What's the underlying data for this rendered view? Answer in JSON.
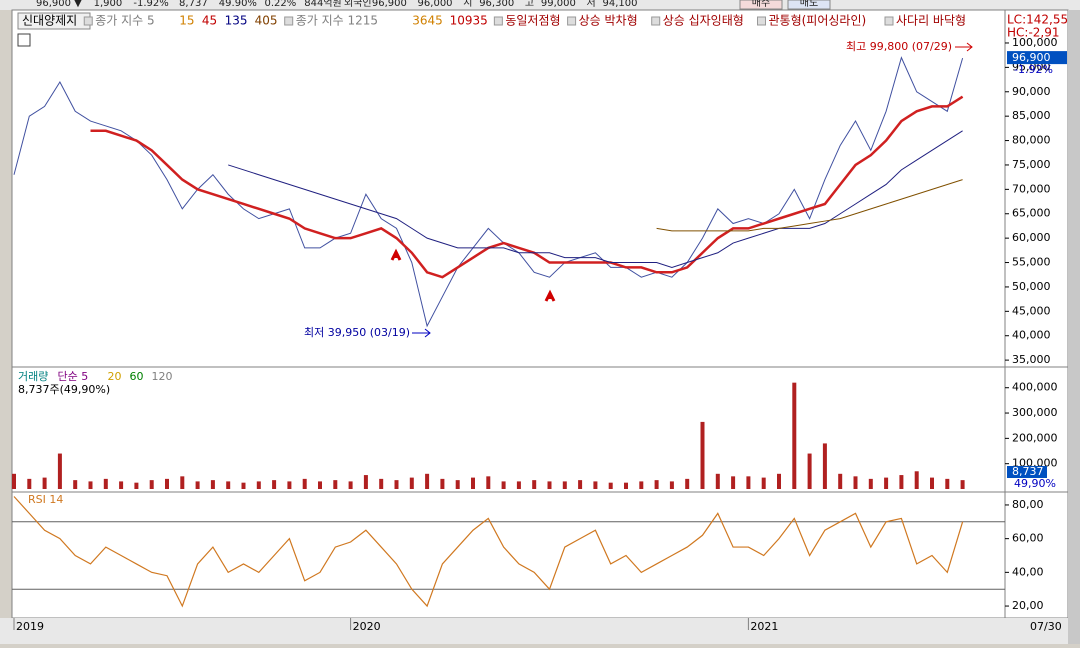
{
  "header": {
    "items": [
      "96,900 ▼",
      "1,900",
      "-1.92%",
      "8,737",
      "49.90%",
      "0.22%",
      "844억원",
      "외국인",
      "96,900",
      "96,000",
      "시",
      "96,300",
      "고",
      "99,000",
      "저",
      "94,100"
    ],
    "buttons": [
      "매수",
      "매도"
    ]
  },
  "legend_bar": {
    "items": [
      {
        "text": "신대양제지",
        "color": "#000000"
      },
      {
        "text": "종가 지수 5",
        "color": "#808080"
      },
      {
        "text": "15",
        "color": "#d08000"
      },
      {
        "text": "45",
        "color": "#c00000"
      },
      {
        "text": "135",
        "color": "#000080"
      },
      {
        "text": "405",
        "color": "#804000"
      },
      {
        "text": "종가 지수 1215",
        "color": "#808080"
      },
      {
        "text": "3645",
        "color": "#d08000"
      },
      {
        "text": "10935",
        "color": "#c00000"
      },
      {
        "text": "동일저점형",
        "color": "#a00000"
      },
      {
        "text": "상승 박차형",
        "color": "#a00000"
      },
      {
        "text": "상승 십자잉태형",
        "color": "#a00000"
      },
      {
        "text": "관통형(피어싱라인)",
        "color": "#a00000"
      },
      {
        "text": "사다리 바닥형",
        "color": "#a00000"
      }
    ],
    "right": [
      "LC:142,55",
      "HC:-2,91"
    ]
  },
  "bottom_bar": {
    "date": "07/30"
  },
  "chart_data": [
    {
      "type": "line",
      "current_price": "96,900",
      "current_change": "-1.92%",
      "annotations": [
        "최고 99,800 (07/29)",
        "최저 39,950 (03/19)"
      ],
      "ylim": [
        34000,
        102250
      ],
      "yticks": [
        {
          "value": 35000,
          "label": "35,000"
        },
        {
          "value": 40000,
          "label": "40,000"
        },
        {
          "value": 45000,
          "label": "45,000"
        },
        {
          "value": 50000,
          "label": "50,000"
        },
        {
          "value": 55000,
          "label": "55,000"
        },
        {
          "value": 60000,
          "label": "60,000"
        },
        {
          "value": 65000,
          "label": "65,000"
        },
        {
          "value": 70000,
          "label": "70,000"
        },
        {
          "value": 75000,
          "label": "75,000"
        },
        {
          "value": 80000,
          "label": "80,000"
        },
        {
          "value": 85000,
          "label": "85,000"
        },
        {
          "value": 90000,
          "label": "90,000"
        },
        {
          "value": 95000,
          "label": "95,000"
        },
        {
          "value": 100000,
          "label": "100,000"
        }
      ],
      "series": [
        {
          "color": "#4050a0",
          "width": 1,
          "values": [
            73000,
            85000,
            87000,
            92000,
            86000,
            84000,
            83000,
            82000,
            80000,
            77000,
            72000,
            66000,
            70000,
            73000,
            69000,
            66000,
            64000,
            65000,
            66000,
            58000,
            58000,
            60000,
            61000,
            69000,
            64000,
            62000,
            55000,
            42000,
            48000,
            54000,
            58000,
            62000,
            59000,
            57000,
            53000,
            52000,
            55000,
            56000,
            57000,
            54000,
            54000,
            52000,
            53000,
            52000,
            55000,
            60000,
            66000,
            63000,
            64000,
            63000,
            65000,
            70000,
            64000,
            72000,
            79000,
            84000,
            78000,
            86000,
            97000,
            90000,
            88000,
            86000,
            96900
          ]
        },
        {
          "color": "#d02020",
          "width": 2.5,
          "values": [
            null,
            null,
            null,
            null,
            null,
            82000,
            82000,
            81000,
            80000,
            78000,
            75000,
            72000,
            70000,
            69000,
            68000,
            67000,
            66000,
            65000,
            64000,
            62000,
            61000,
            60000,
            60000,
            61000,
            62000,
            60000,
            57000,
            53000,
            52000,
            54000,
            56000,
            58000,
            59000,
            58000,
            57000,
            55000,
            55000,
            55000,
            55000,
            55000,
            54000,
            54000,
            53000,
            53000,
            54000,
            57000,
            60000,
            62000,
            62000,
            63000,
            64000,
            65000,
            66000,
            67000,
            71000,
            75000,
            77000,
            80000,
            84000,
            86000,
            87000,
            87000,
            89000
          ]
        },
        {
          "color": "#202080",
          "width": 1,
          "values": [
            null,
            null,
            null,
            null,
            null,
            null,
            null,
            null,
            null,
            null,
            null,
            null,
            null,
            null,
            75000,
            74000,
            73000,
            72000,
            71000,
            70000,
            69000,
            68000,
            67000,
            66000,
            65000,
            64000,
            62000,
            60000,
            59000,
            58000,
            58000,
            58000,
            58000,
            57000,
            57000,
            57000,
            56000,
            56000,
            56000,
            55000,
            55000,
            55000,
            55000,
            54000,
            55000,
            56000,
            57000,
            59000,
            60000,
            61000,
            62000,
            62000,
            62000,
            63000,
            65000,
            67000,
            69000,
            71000,
            74000,
            76000,
            78000,
            80000,
            82000
          ]
        },
        {
          "color": "#805000",
          "width": 1,
          "values": [
            null,
            null,
            null,
            null,
            null,
            null,
            null,
            null,
            null,
            null,
            null,
            null,
            null,
            null,
            null,
            null,
            null,
            null,
            null,
            null,
            null,
            null,
            null,
            null,
            null,
            null,
            null,
            null,
            null,
            null,
            null,
            null,
            null,
            null,
            null,
            null,
            null,
            null,
            null,
            null,
            null,
            null,
            62000,
            61500,
            61500,
            61500,
            61500,
            61500,
            61500,
            62000,
            62000,
            62500,
            63000,
            63500,
            64000,
            65000,
            66000,
            67000,
            68000,
            69000,
            70000,
            71000,
            72000
          ]
        }
      ]
    },
    {
      "type": "bar",
      "legend": [
        "거래량",
        "단순 5",
        "20",
        "60",
        "120"
      ],
      "legend_colors": [
        "#008080",
        "#800080",
        "#d0a000",
        "#008000",
        "#808080"
      ],
      "summary": "8,737주(49,90%)",
      "current_volume": "8,737",
      "current_ratio": "49,90%",
      "ylim": [
        0,
        470000
      ],
      "yticks": [
        {
          "value": 100000,
          "label": "100,000"
        },
        {
          "value": 200000,
          "label": "200,000"
        },
        {
          "value": 300000,
          "label": "300,000"
        },
        {
          "value": 400000,
          "label": "400,000"
        }
      ],
      "color": "#b02020",
      "values": [
        60000,
        40000,
        45000,
        140000,
        35000,
        30000,
        40000,
        30000,
        25000,
        35000,
        40000,
        50000,
        30000,
        35000,
        30000,
        25000,
        30000,
        35000,
        30000,
        40000,
        30000,
        35000,
        30000,
        55000,
        40000,
        35000,
        45000,
        60000,
        40000,
        35000,
        45000,
        50000,
        30000,
        30000,
        35000,
        30000,
        30000,
        35000,
        30000,
        25000,
        25000,
        30000,
        35000,
        30000,
        40000,
        265000,
        60000,
        50000,
        50000,
        45000,
        60000,
        420000,
        140000,
        180000,
        60000,
        50000,
        40000,
        45000,
        55000,
        70000,
        45000,
        40000,
        35000
      ]
    },
    {
      "type": "line",
      "legend": "RSI 14",
      "color": "#d07820",
      "ylim": [
        13.5,
        86.5
      ],
      "reference_lines": [
        70,
        30
      ],
      "yticks": [
        {
          "value": 20,
          "label": "20,00"
        },
        {
          "value": 40,
          "label": "40,00"
        },
        {
          "value": 60,
          "label": "60,00"
        },
        {
          "value": 80,
          "label": "80,00"
        }
      ],
      "categories": [
        "2019",
        null,
        null,
        null,
        null,
        null,
        null,
        null,
        null,
        null,
        null,
        null,
        null,
        null,
        null,
        null,
        null,
        null,
        null,
        null,
        null,
        null,
        "2020",
        null,
        null,
        null,
        null,
        null,
        null,
        null,
        null,
        null,
        null,
        null,
        null,
        null,
        null,
        null,
        null,
        null,
        null,
        null,
        null,
        null,
        null,
        null,
        null,
        null,
        "2021",
        null,
        null,
        null,
        null,
        null,
        null,
        null,
        null,
        null,
        null,
        null,
        null,
        null,
        null
      ],
      "values": [
        85,
        75,
        65,
        60,
        50,
        45,
        55,
        50,
        45,
        40,
        38,
        20,
        45,
        55,
        40,
        45,
        40,
        50,
        60,
        35,
        40,
        55,
        58,
        65,
        55,
        45,
        30,
        20,
        45,
        55,
        65,
        72,
        55,
        45,
        40,
        30,
        55,
        60,
        65,
        45,
        50,
        40,
        45,
        50,
        55,
        62,
        75,
        55,
        55,
        50,
        60,
        72,
        50,
        65,
        70,
        75,
        55,
        70,
        72,
        45,
        50,
        40,
        70
      ]
    }
  ]
}
